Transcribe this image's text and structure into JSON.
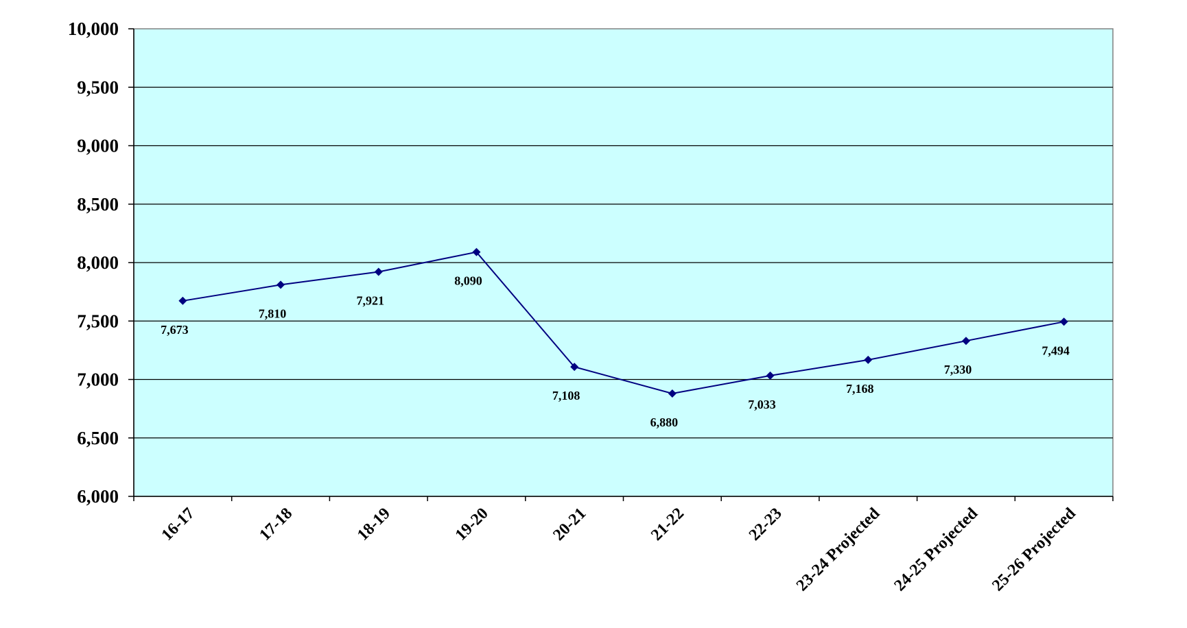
{
  "chart_data": {
    "type": "line",
    "title": "",
    "xlabel": "",
    "ylabel": "",
    "categories": [
      "16-17",
      "17-18",
      "18-19",
      "19-20",
      "20-21",
      "21-22",
      "22-23",
      "23-24 Projected",
      "24-25 Projected",
      "25-26 Projected"
    ],
    "series": [
      {
        "values": [
          7673,
          7810,
          7921,
          8090,
          7108,
          6880,
          7033,
          7168,
          7330,
          7494
        ],
        "labels": [
          "7,673",
          "7,810",
          "7,921",
          "8,090",
          "7,108",
          "6,880",
          "7,033",
          "7,168",
          "7,330",
          "7,494"
        ]
      }
    ],
    "ylim": [
      6000,
      10000
    ],
    "yticks": [
      6000,
      6500,
      7000,
      7500,
      8000,
      8500,
      9000,
      9500,
      10000
    ],
    "ytick_labels": [
      "6,000",
      "6,500",
      "7,000",
      "7,500",
      "8,000",
      "8,500",
      "9,000",
      "9,500",
      "10,000"
    ],
    "grid": true,
    "legend": "none",
    "colors": {
      "plot_background": "#ccffff",
      "line": "#000080",
      "gridline": "#000000"
    }
  }
}
